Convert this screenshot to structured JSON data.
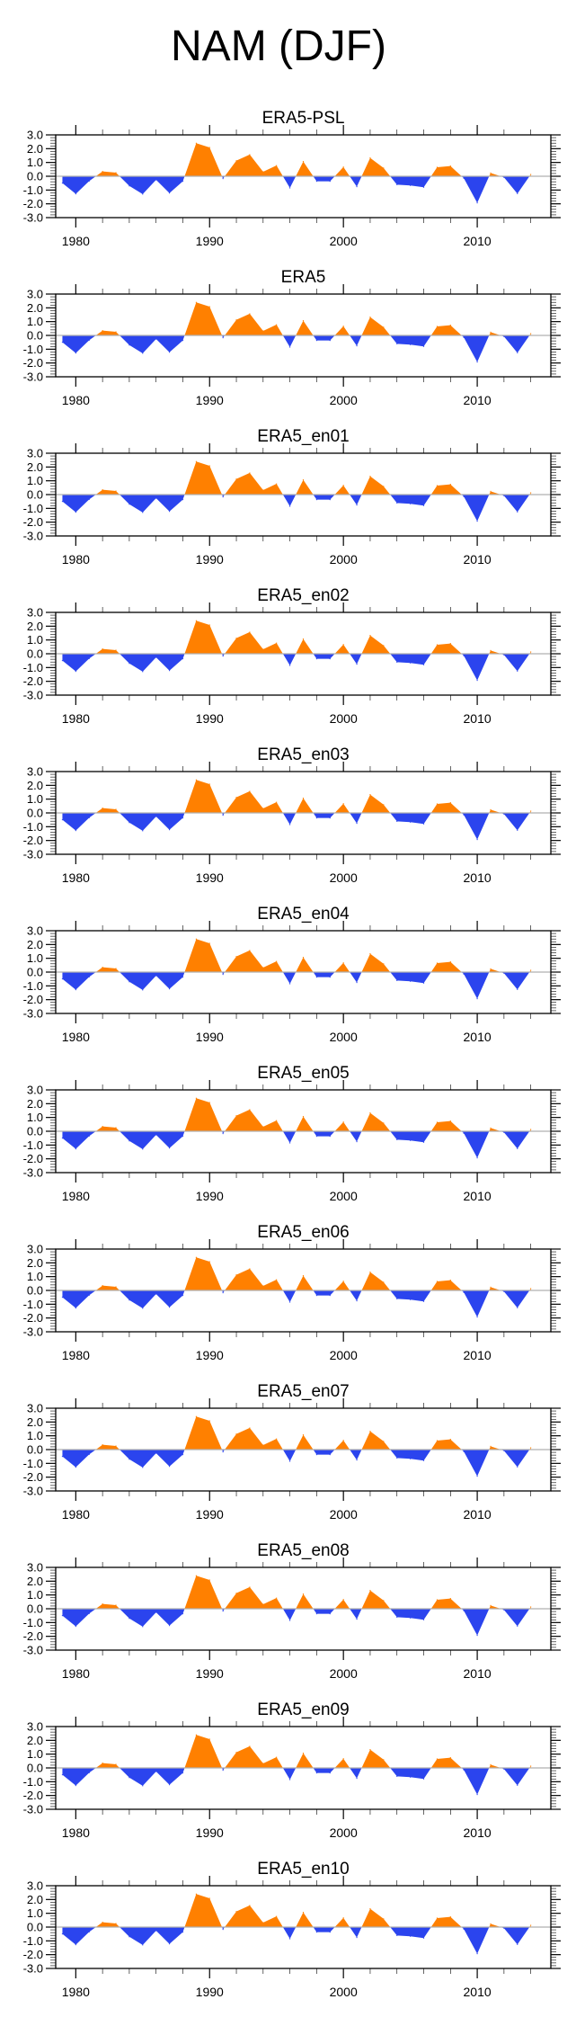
{
  "figure": {
    "title": "NAM (DJF)"
  },
  "chart_data": {
    "type": "area",
    "title": "NAM (DJF)",
    "subtype": "filled anomaly time series (positive above zero, negative below zero)",
    "xlabel": "",
    "ylabel": "",
    "xlim": [
      1978.5,
      2015.5
    ],
    "ylim": [
      -3.0,
      3.0
    ],
    "x_ticks_major": [
      1980,
      1990,
      2000,
      2010
    ],
    "x_tick_labels": [
      "1980",
      "1990",
      "2000",
      "2010"
    ],
    "x_ticks_minor_step": 2,
    "y_ticks_major": [
      -3.0,
      -2.0,
      -1.0,
      0.0,
      1.0,
      2.0,
      3.0
    ],
    "y_tick_labels": [
      "-3.0",
      "-2.0",
      "-1.0",
      "0.0",
      "1.0",
      "2.0",
      "3.0"
    ],
    "y_ticks_minor_step": 0.2,
    "grid": false,
    "legend": "none",
    "colors": {
      "positive": "#FF8000",
      "negative": "#2B44EE",
      "zero_line": "#B0B0B0",
      "frame": "#000000"
    },
    "x": [
      1979,
      1980,
      1981,
      1982,
      1983,
      1984,
      1985,
      1986,
      1987,
      1988,
      1989,
      1990,
      1991,
      1992,
      1993,
      1994,
      1995,
      1996,
      1997,
      1998,
      1999,
      2000,
      2001,
      2002,
      2003,
      2004,
      2005,
      2006,
      2007,
      2008,
      2009,
      2010,
      2011,
      2012,
      2013,
      2014
    ],
    "panels": [
      {
        "title": "ERA5-PSL",
        "values": [
          -0.5,
          -1.28,
          -0.35,
          0.35,
          0.26,
          -0.7,
          -1.3,
          -0.26,
          -1.22,
          -0.37,
          2.4,
          2.09,
          -0.17,
          1.13,
          1.57,
          0.33,
          0.78,
          -0.85,
          1.07,
          -0.37,
          -0.37,
          0.67,
          -0.76,
          1.33,
          0.6,
          -0.61,
          -0.67,
          -0.8,
          0.65,
          0.74,
          -0.15,
          -1.93,
          0.24,
          -0.08,
          -1.26,
          0.13
        ]
      },
      {
        "title": "ERA5",
        "values": [
          -0.5,
          -1.28,
          -0.35,
          0.35,
          0.26,
          -0.7,
          -1.3,
          -0.26,
          -1.22,
          -0.37,
          2.4,
          2.09,
          -0.17,
          1.13,
          1.57,
          0.33,
          0.78,
          -0.85,
          1.07,
          -0.37,
          -0.37,
          0.67,
          -0.76,
          1.33,
          0.6,
          -0.61,
          -0.67,
          -0.8,
          0.65,
          0.74,
          -0.15,
          -1.93,
          0.24,
          -0.08,
          -1.26,
          0.13
        ]
      },
      {
        "title": "ERA5_en01",
        "values": [
          -0.5,
          -1.28,
          -0.35,
          0.35,
          0.26,
          -0.7,
          -1.3,
          -0.26,
          -1.22,
          -0.37,
          2.4,
          2.09,
          -0.17,
          1.13,
          1.57,
          0.33,
          0.78,
          -0.85,
          1.07,
          -0.37,
          -0.37,
          0.67,
          -0.76,
          1.33,
          0.6,
          -0.61,
          -0.67,
          -0.8,
          0.65,
          0.74,
          -0.15,
          -1.93,
          0.24,
          -0.08,
          -1.26,
          0.13
        ]
      },
      {
        "title": "ERA5_en02",
        "values": [
          -0.5,
          -1.28,
          -0.35,
          0.35,
          0.26,
          -0.7,
          -1.3,
          -0.26,
          -1.22,
          -0.37,
          2.4,
          2.09,
          -0.17,
          1.13,
          1.57,
          0.33,
          0.78,
          -0.85,
          1.07,
          -0.37,
          -0.37,
          0.67,
          -0.76,
          1.33,
          0.6,
          -0.61,
          -0.67,
          -0.8,
          0.65,
          0.74,
          -0.15,
          -1.93,
          0.24,
          -0.08,
          -1.26,
          0.13
        ]
      },
      {
        "title": "ERA5_en03",
        "values": [
          -0.5,
          -1.28,
          -0.35,
          0.35,
          0.26,
          -0.7,
          -1.3,
          -0.26,
          -1.22,
          -0.37,
          2.4,
          2.09,
          -0.17,
          1.13,
          1.57,
          0.33,
          0.78,
          -0.85,
          1.07,
          -0.37,
          -0.37,
          0.67,
          -0.76,
          1.33,
          0.6,
          -0.61,
          -0.67,
          -0.8,
          0.65,
          0.74,
          -0.15,
          -1.93,
          0.24,
          -0.08,
          -1.26,
          0.13
        ]
      },
      {
        "title": "ERA5_en04",
        "values": [
          -0.5,
          -1.28,
          -0.35,
          0.35,
          0.26,
          -0.7,
          -1.3,
          -0.26,
          -1.22,
          -0.37,
          2.4,
          2.09,
          -0.17,
          1.13,
          1.57,
          0.33,
          0.78,
          -0.85,
          1.07,
          -0.37,
          -0.37,
          0.67,
          -0.76,
          1.33,
          0.6,
          -0.61,
          -0.67,
          -0.8,
          0.65,
          0.74,
          -0.15,
          -1.93,
          0.24,
          -0.08,
          -1.26,
          0.13
        ]
      },
      {
        "title": "ERA5_en05",
        "values": [
          -0.5,
          -1.28,
          -0.35,
          0.35,
          0.26,
          -0.7,
          -1.3,
          -0.26,
          -1.22,
          -0.37,
          2.4,
          2.09,
          -0.17,
          1.13,
          1.57,
          0.33,
          0.78,
          -0.85,
          1.07,
          -0.37,
          -0.37,
          0.67,
          -0.76,
          1.33,
          0.6,
          -0.61,
          -0.67,
          -0.8,
          0.65,
          0.74,
          -0.15,
          -1.93,
          0.24,
          -0.08,
          -1.26,
          0.13
        ]
      },
      {
        "title": "ERA5_en06",
        "values": [
          -0.5,
          -1.28,
          -0.35,
          0.35,
          0.26,
          -0.7,
          -1.3,
          -0.26,
          -1.22,
          -0.37,
          2.4,
          2.09,
          -0.17,
          1.13,
          1.57,
          0.33,
          0.78,
          -0.85,
          1.07,
          -0.37,
          -0.37,
          0.67,
          -0.76,
          1.33,
          0.6,
          -0.61,
          -0.67,
          -0.8,
          0.65,
          0.74,
          -0.15,
          -1.93,
          0.24,
          -0.08,
          -1.26,
          0.13
        ]
      },
      {
        "title": "ERA5_en07",
        "values": [
          -0.5,
          -1.28,
          -0.35,
          0.35,
          0.26,
          -0.7,
          -1.3,
          -0.26,
          -1.22,
          -0.37,
          2.4,
          2.09,
          -0.17,
          1.13,
          1.57,
          0.33,
          0.78,
          -0.85,
          1.07,
          -0.37,
          -0.37,
          0.67,
          -0.76,
          1.33,
          0.6,
          -0.61,
          -0.67,
          -0.8,
          0.65,
          0.74,
          -0.15,
          -1.93,
          0.24,
          -0.08,
          -1.26,
          0.13
        ]
      },
      {
        "title": "ERA5_en08",
        "values": [
          -0.5,
          -1.28,
          -0.35,
          0.35,
          0.26,
          -0.7,
          -1.3,
          -0.26,
          -1.22,
          -0.37,
          2.4,
          2.09,
          -0.17,
          1.13,
          1.57,
          0.33,
          0.78,
          -0.85,
          1.07,
          -0.37,
          -0.37,
          0.67,
          -0.76,
          1.33,
          0.6,
          -0.61,
          -0.67,
          -0.8,
          0.65,
          0.74,
          -0.15,
          -1.93,
          0.24,
          -0.08,
          -1.26,
          0.13
        ]
      },
      {
        "title": "ERA5_en09",
        "values": [
          -0.5,
          -1.28,
          -0.35,
          0.35,
          0.26,
          -0.7,
          -1.3,
          -0.26,
          -1.22,
          -0.37,
          2.4,
          2.09,
          -0.17,
          1.13,
          1.57,
          0.33,
          0.78,
          -0.85,
          1.07,
          -0.37,
          -0.37,
          0.67,
          -0.76,
          1.33,
          0.6,
          -0.61,
          -0.67,
          -0.8,
          0.65,
          0.74,
          -0.15,
          -1.93,
          0.24,
          -0.08,
          -1.26,
          0.13
        ]
      },
      {
        "title": "ERA5_en10",
        "values": [
          -0.5,
          -1.28,
          -0.35,
          0.35,
          0.26,
          -0.7,
          -1.3,
          -0.26,
          -1.22,
          -0.37,
          2.4,
          2.09,
          -0.17,
          1.13,
          1.57,
          0.33,
          0.78,
          -0.85,
          1.07,
          -0.37,
          -0.37,
          0.67,
          -0.76,
          1.33,
          0.6,
          -0.61,
          -0.67,
          -0.8,
          0.65,
          0.74,
          -0.15,
          -1.93,
          0.24,
          -0.08,
          -1.26,
          0.13
        ]
      }
    ]
  }
}
